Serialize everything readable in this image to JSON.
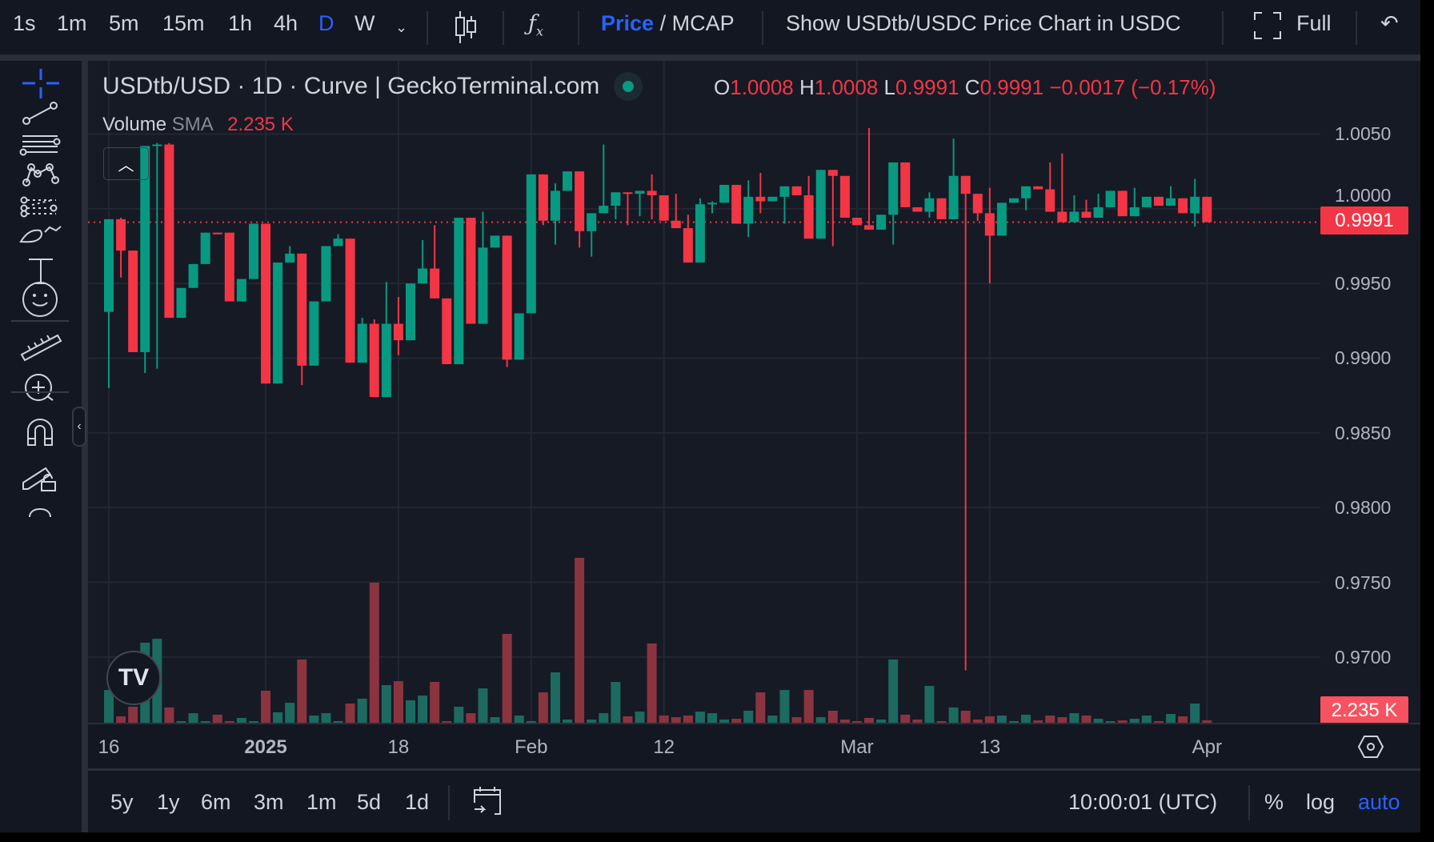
{
  "toolbar": {
    "intervals": [
      "1s",
      "1m",
      "5m",
      "15m",
      "1h",
      "4h",
      "D",
      "W"
    ],
    "active_interval": "D",
    "price_label": "Price",
    "mcap_label": "/ MCAP",
    "show_usdc_label": "Show USDtb/USDC Price Chart in USDC",
    "full_label": "Full"
  },
  "legend": {
    "title": "USDtb/USD · 1D · Curve | GeckoTerminal.com",
    "o_label": "O",
    "o": "1.0008",
    "h_label": "H",
    "h": "1.0008",
    "l_label": "L",
    "l": "0.9991",
    "c_label": "C",
    "c": "0.9991",
    "change": "−0.0017 (−0.17%)",
    "volume_label": "Volume",
    "sma_label": "SMA",
    "volume_value": "2.235 K"
  },
  "price_tag": "0.9991",
  "volume_tag": "2.235 K",
  "bottom": {
    "ranges": [
      "5y",
      "1y",
      "6m",
      "3m",
      "1m",
      "5d",
      "1d"
    ],
    "time": "10:00:01 (UTC)",
    "percent": "%",
    "log": "log",
    "auto": "auto"
  },
  "colors": {
    "up": "#089981",
    "down": "#f23645",
    "accent": "#2962ff",
    "background": "#161a25"
  },
  "chart_data": {
    "type": "candlestick",
    "y_ticks": [
      "1.0050",
      "1.0000",
      "0.9950",
      "0.9900",
      "0.9850",
      "0.9800",
      "0.9750",
      "0.9700"
    ],
    "ylim": [
      0.9656,
      1.0099
    ],
    "last_price": 0.9991,
    "x_ticks": [
      {
        "label": "16",
        "bar": 0
      },
      {
        "label": "2025",
        "bar": 13,
        "bold": true
      },
      {
        "label": "18",
        "bar": 24
      },
      {
        "label": "Feb",
        "bar": 35
      },
      {
        "label": "12",
        "bar": 46
      },
      {
        "label": "Mar",
        "bar": 62
      },
      {
        "label": "13",
        "bar": 73
      },
      {
        "label": "Apr",
        "bar": 91
      }
    ],
    "ohlc": [
      [
        0.9931,
        0.9993,
        0.988,
        0.9993
      ],
      [
        0.9993,
        0.9994,
        0.9954,
        0.9972
      ],
      [
        0.9972,
        0.9972,
        0.9904,
        0.9904
      ],
      [
        0.9904,
        1.0042,
        0.989,
        1.0042
      ],
      [
        1.0042,
        1.0044,
        0.9893,
        1.0043
      ],
      [
        1.0043,
        1.0044,
        0.9927,
        0.9927
      ],
      [
        0.9927,
        0.9947,
        0.9927,
        0.9947
      ],
      [
        0.9947,
        0.9963,
        0.9947,
        0.9963
      ],
      [
        0.9963,
        0.9984,
        0.9963,
        0.9984
      ],
      [
        0.9984,
        0.9984,
        0.9983,
        0.9983
      ],
      [
        0.9984,
        0.9984,
        0.9938,
        0.9938
      ],
      [
        0.9938,
        0.9953,
        0.9938,
        0.9953
      ],
      [
        0.9953,
        0.999,
        0.9953,
        0.999
      ],
      [
        0.999,
        0.999,
        0.9883,
        0.9883
      ],
      [
        0.9883,
        0.9964,
        0.9883,
        0.9964
      ],
      [
        0.9964,
        0.9975,
        0.9964,
        0.997
      ],
      [
        0.997,
        0.997,
        0.9882,
        0.9895
      ],
      [
        0.9895,
        0.9938,
        0.9895,
        0.9938
      ],
      [
        0.9938,
        0.9975,
        0.9938,
        0.9975
      ],
      [
        0.9975,
        0.9983,
        0.9975,
        0.998
      ],
      [
        0.998,
        0.998,
        0.9897,
        0.9897
      ],
      [
        0.9897,
        0.9927,
        0.9897,
        0.9923
      ],
      [
        0.9923,
        0.9926,
        0.9874,
        0.9874
      ],
      [
        0.9874,
        0.9951,
        0.9874,
        0.9923
      ],
      [
        0.9923,
        0.9941,
        0.9902,
        0.9912
      ],
      [
        0.9912,
        0.995,
        0.9912,
        0.995
      ],
      [
        0.995,
        0.9979,
        0.995,
        0.996
      ],
      [
        0.996,
        0.9989,
        0.994,
        0.994
      ],
      [
        0.994,
        0.994,
        0.9896,
        0.9896
      ],
      [
        0.9896,
        0.9994,
        0.9896,
        0.9994
      ],
      [
        0.9994,
        0.9994,
        0.9923,
        0.9923
      ],
      [
        0.9923,
        0.9998,
        0.9923,
        0.9974
      ],
      [
        0.9974,
        0.9982,
        0.9974,
        0.9982
      ],
      [
        0.9982,
        0.9982,
        0.9894,
        0.9899
      ],
      [
        0.9899,
        0.993,
        0.9899,
        0.993
      ],
      [
        0.993,
        1.0023,
        0.993,
        1.0023
      ],
      [
        1.0023,
        1.0023,
        0.9989,
        0.9992
      ],
      [
        0.9992,
        1.0017,
        0.9976,
        1.0012
      ],
      [
        1.0012,
        1.0025,
        1.0012,
        1.0025
      ],
      [
        1.0025,
        1.0025,
        0.9974,
        0.9985
      ],
      [
        0.9985,
        0.9997,
        0.9968,
        0.9997
      ],
      [
        0.9997,
        1.0043,
        0.9997,
        1.0002
      ],
      [
        1.0002,
        1.0011,
        0.9993,
        1.0011
      ],
      [
        1.0011,
        1.0011,
        0.9989,
        1.001
      ],
      [
        1.001,
        1.0012,
        0.9995,
        1.0012
      ],
      [
        1.0012,
        1.0023,
        0.9993,
        1.0009
      ],
      [
        1.0009,
        1.0009,
        0.9992,
        0.9992
      ],
      [
        0.9992,
        1.001,
        0.9987,
        0.9987
      ],
      [
        0.9987,
        0.9996,
        0.9964,
        0.9964
      ],
      [
        0.9964,
        1.0007,
        0.9964,
        1.0003
      ],
      [
        1.0003,
        1.0005,
        0.9997,
        1.0004
      ],
      [
        1.0004,
        1.0016,
        1.0004,
        1.0016
      ],
      [
        1.0016,
        1.0016,
        0.999,
        0.999
      ],
      [
        0.999,
        1.0019,
        0.9981,
        1.0008
      ],
      [
        1.0008,
        1.0024,
        0.9997,
        1.0005
      ],
      [
        1.0005,
        1.0008,
        1.0005,
        1.0008
      ],
      [
        1.0008,
        1.0015,
        0.999,
        1.0015
      ],
      [
        1.0015,
        1.0015,
        1.0009,
        1.0009
      ],
      [
        1.0009,
        1.0022,
        0.998,
        0.998
      ],
      [
        0.998,
        1.0026,
        0.998,
        1.0026
      ],
      [
        1.0026,
        1.0026,
        0.9975,
        1.0022
      ],
      [
        1.0022,
        1.0022,
        0.9994,
        0.9994
      ],
      [
        0.9994,
        0.9994,
        0.9989,
        0.9989
      ],
      [
        0.9989,
        1.0054,
        0.9986,
        0.9986
      ],
      [
        0.9986,
        0.9996,
        0.9986,
        0.9996
      ],
      [
        0.9996,
        1.0031,
        0.9976,
        1.0031
      ],
      [
        1.0031,
        1.0031,
        1.0001,
        1.0001
      ],
      [
        1.0001,
        1.0001,
        0.9998,
        0.9998
      ],
      [
        0.9998,
        1.0011,
        0.9994,
        1.0007
      ],
      [
        1.0007,
        1.0007,
        0.9993,
        0.9993
      ],
      [
        0.9993,
        1.0047,
        0.9993,
        1.0022
      ],
      [
        1.0022,
        1.0022,
        0.9691,
        1.001
      ],
      [
        1.001,
        1.001,
        0.9992,
        0.9997
      ],
      [
        0.9997,
        1.0014,
        0.995,
        0.9982
      ],
      [
        0.9982,
        1.0004,
        0.9982,
        1.0004
      ],
      [
        1.0004,
        1.0007,
        1.0004,
        1.0007
      ],
      [
        1.0007,
        1.0015,
        0.9999,
        1.0015
      ],
      [
        1.0015,
        1.0015,
        1.0013,
        1.0013
      ],
      [
        1.0013,
        1.0031,
        0.9998,
        0.9998
      ],
      [
        0.9998,
        1.0037,
        0.9991,
        0.9991
      ],
      [
        0.9991,
        1.0009,
        0.9991,
        0.9998
      ],
      [
        0.9998,
        1.0006,
        0.9994,
        0.9994
      ],
      [
        0.9994,
        1.001,
        0.9994,
        1.0001
      ],
      [
        1.0001,
        1.0012,
        1.0001,
        1.0012
      ],
      [
        1.0012,
        1.0012,
        0.9995,
        0.9995
      ],
      [
        0.9995,
        1.0014,
        0.9995,
        1.0001
      ],
      [
        1.0001,
        1.0008,
        1.0001,
        1.0008
      ],
      [
        1.0008,
        1.0008,
        1.0002,
        1.0002
      ],
      [
        1.0002,
        1.0015,
        1.0002,
        1.0007
      ],
      [
        1.0007,
        1.0007,
        0.9997,
        0.9997
      ],
      [
        0.9997,
        1.002,
        0.9988,
        1.0008
      ],
      [
        1.0008,
        1.0008,
        0.9991,
        0.9991
      ]
    ],
    "volume_k": [
      30.5,
      6.0,
      14.9,
      74.5,
      78.2,
      14.2,
      1.5,
      8.9,
      1.5,
      7.5,
      1.5,
      4.5,
      1.5,
      29.8,
      9.7,
      18.6,
      58.9,
      6.7,
      8.9,
      1.5,
      17.9,
      22.4,
      130.4,
      35.0,
      38.7,
      20.9,
      25.3,
      38.0,
      1.5,
      14.9,
      8.9,
      32.0,
      5.2,
      82.7,
      6.7,
      1.5,
      28.3,
      46.9,
      3.0,
      153.5,
      3.0,
      8.9,
      38.0,
      6.0,
      10.4,
      73.8,
      6.7,
      5.2,
      6.7,
      10.4,
      8.9,
      3.0,
      3.7,
      11.2,
      28.3,
      6.7,
      30.5,
      5.2,
      30.5,
      5.2,
      11.2,
      3.0,
      1.5,
      4.5,
      3.0,
      58.9,
      7.5,
      3.0,
      34.3,
      1.5,
      14.2,
      11.2,
      3.0,
      6.0,
      6.7,
      1.5,
      7.5,
      2.2,
      6.7,
      5.2,
      8.9,
      6.7,
      3.7,
      1.5,
      2.2,
      3.7,
      6.7,
      1.5,
      8.2,
      6.0,
      17.9,
      2.235
    ]
  }
}
